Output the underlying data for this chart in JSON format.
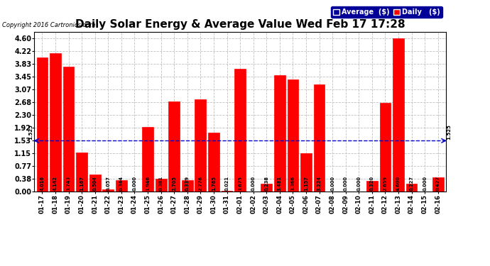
{
  "title": "Daily Solar Energy & Average Value Wed Feb 17 17:28",
  "copyright": "Copyright 2016 Cartronics.com",
  "categories": [
    "01-17",
    "01-18",
    "01-19",
    "01-20",
    "01-21",
    "01-22",
    "01-23",
    "01-24",
    "01-25",
    "01-26",
    "01-27",
    "01-28",
    "01-29",
    "01-30",
    "01-31",
    "02-01",
    "02-02",
    "02-03",
    "02-04",
    "02-05",
    "02-06",
    "02-07",
    "02-08",
    "02-09",
    "02-10",
    "02-11",
    "02-12",
    "02-13",
    "02-14",
    "02-15",
    "02-16"
  ],
  "values": [
    4.016,
    4.142,
    3.743,
    1.167,
    0.504,
    0.057,
    0.344,
    0.0,
    1.946,
    0.381,
    2.705,
    0.339,
    2.776,
    1.765,
    0.021,
    3.675,
    0.0,
    0.238,
    3.481,
    3.366,
    1.157,
    3.224,
    0.0,
    0.0,
    0.0,
    0.32,
    2.659,
    4.6,
    0.227,
    0.0,
    0.427
  ],
  "average_value": 1.525,
  "bar_color": "#FF0000",
  "average_line_color": "#0000CC",
  "grid_color": "#C0C0C0",
  "background_color": "#FFFFFF",
  "plot_bg_color": "#FFFFFF",
  "yticks": [
    0.0,
    0.38,
    0.77,
    1.15,
    1.53,
    1.92,
    2.3,
    2.68,
    3.07,
    3.45,
    3.83,
    4.22,
    4.6
  ],
  "ylim": [
    0.0,
    4.79
  ],
  "title_fontsize": 11,
  "legend_avg_color": "#000099",
  "legend_daily_color": "#FF0000",
  "avg_label": "1.525"
}
